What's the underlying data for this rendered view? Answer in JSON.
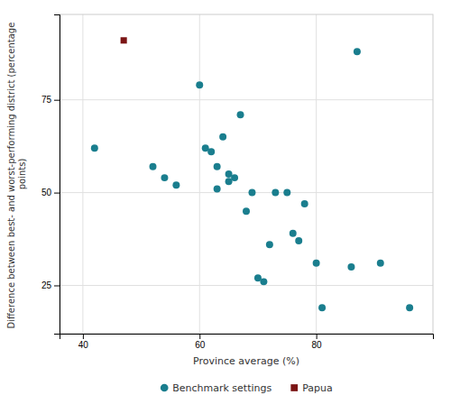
{
  "chart_data": {
    "type": "scatter",
    "xlabel": "Province average (%)",
    "ylabel": "Difference between best- and worst-performing district (percentage points)",
    "series": [
      {
        "name": "Benchmark settings",
        "color": "#1a7e8e",
        "marker": "circle",
        "x": [
          42,
          52,
          54,
          56,
          60,
          61,
          62,
          63,
          63,
          64,
          65,
          65,
          66,
          67,
          68,
          69,
          70,
          71,
          72,
          73,
          75,
          76,
          77,
          78,
          80,
          81,
          86,
          87,
          91,
          96
        ],
        "values": [
          62,
          57,
          54,
          52,
          79,
          62,
          61,
          57,
          51,
          65,
          55,
          53,
          54,
          71,
          45,
          50,
          27,
          26,
          36,
          50,
          50,
          39,
          37,
          47,
          31,
          19,
          30,
          88,
          31,
          19
        ]
      },
      {
        "name": "Papua",
        "color": "#7b1515",
        "marker": "square",
        "x": [
          47
        ],
        "values": [
          91
        ]
      }
    ],
    "xlim": [
      36,
      100
    ],
    "ylim": [
      12,
      98
    ],
    "xticks": [
      40,
      60,
      80
    ],
    "yticks": [
      25,
      50,
      75
    ],
    "grid": true,
    "legend": "bottom"
  }
}
